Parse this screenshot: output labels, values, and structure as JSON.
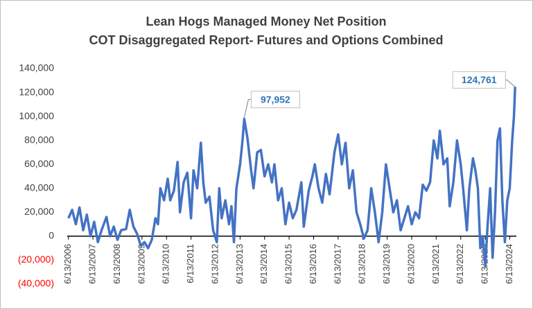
{
  "chart_data": {
    "type": "line",
    "title": "Lean Hogs Managed Money Net Position",
    "subtitle": "COT Disaggregated Report- Futures and Options Combined",
    "x": [
      2006.45,
      2006.6,
      2006.75,
      2006.9,
      2007.05,
      2007.2,
      2007.35,
      2007.5,
      2007.65,
      2007.8,
      2008.0,
      2008.15,
      2008.3,
      2008.45,
      2008.6,
      2008.8,
      2008.95,
      2009.1,
      2009.25,
      2009.4,
      2009.55,
      2009.7,
      2009.85,
      2010.0,
      2010.1,
      2010.2,
      2010.35,
      2010.5,
      2010.6,
      2010.75,
      2010.9,
      2011.0,
      2011.15,
      2011.3,
      2011.45,
      2011.55,
      2011.7,
      2011.85,
      2011.95,
      2012.05,
      2012.2,
      2012.35,
      2012.5,
      2012.6,
      2012.7,
      2012.85,
      2013.0,
      2013.1,
      2013.2,
      2013.3,
      2013.45,
      2013.55,
      2013.62,
      2013.75,
      2013.9,
      2014.0,
      2014.15,
      2014.3,
      2014.45,
      2014.6,
      2014.75,
      2014.85,
      2015.0,
      2015.15,
      2015.3,
      2015.45,
      2015.6,
      2015.75,
      2015.95,
      2016.05,
      2016.25,
      2016.4,
      2016.5,
      2016.65,
      2016.8,
      2016.95,
      2017.1,
      2017.3,
      2017.45,
      2017.6,
      2017.75,
      2017.9,
      2018.05,
      2018.2,
      2018.35,
      2018.5,
      2018.65,
      2018.8,
      2018.95,
      2019.1,
      2019.25,
      2019.4,
      2019.55,
      2019.7,
      2019.85,
      2020.0,
      2020.15,
      2020.3,
      2020.45,
      2020.6,
      2020.75,
      2020.9,
      2021.05,
      2021.2,
      2021.35,
      2021.5,
      2021.6,
      2021.75,
      2021.9,
      2022.0,
      2022.15,
      2022.3,
      2022.45,
      2022.55,
      2022.7,
      2022.8,
      2022.95,
      2023.05,
      2023.15,
      2023.25,
      2023.35,
      2023.45,
      2023.55,
      2023.65,
      2023.75,
      2023.85,
      2023.95,
      2024.05,
      2024.15,
      2024.25,
      2024.35,
      2024.45,
      2024.55,
      2024.62,
      2024.67
    ],
    "series": [
      {
        "name": "Managed Money Net Position",
        "color": "#4472c4",
        "values": [
          15000,
          22000,
          10000,
          24000,
          5000,
          18000,
          0,
          12000,
          -5000,
          5000,
          16000,
          0,
          8000,
          -3000,
          5000,
          6000,
          22000,
          8000,
          2000,
          -8000,
          -5000,
          -10000,
          -3000,
          15000,
          10000,
          40000,
          30000,
          48000,
          30000,
          38000,
          62000,
          20000,
          45000,
          53000,
          15000,
          55000,
          40000,
          78000,
          45000,
          28000,
          33000,
          5000,
          -5000,
          40000,
          15000,
          30000,
          10000,
          25000,
          -5000,
          40000,
          60000,
          80000,
          97952,
          82000,
          55000,
          40000,
          70000,
          72000,
          50000,
          60000,
          45000,
          60000,
          30000,
          40000,
          10000,
          28000,
          15000,
          22000,
          45000,
          8000,
          38000,
          50000,
          60000,
          40000,
          28000,
          52000,
          35000,
          70000,
          85000,
          60000,
          78000,
          40000,
          55000,
          20000,
          10000,
          -2000,
          5000,
          40000,
          20000,
          -5000,
          20000,
          60000,
          40000,
          20000,
          30000,
          5000,
          15000,
          25000,
          10000,
          20000,
          15000,
          43000,
          38000,
          45000,
          80000,
          65000,
          88000,
          60000,
          65000,
          25000,
          45000,
          80000,
          60000,
          40000,
          5000,
          40000,
          65000,
          55000,
          40000,
          -10000,
          0,
          -25000,
          10000,
          40000,
          -18000,
          20000,
          80000,
          90000,
          30000,
          -5000,
          30000,
          40000,
          80000,
          100000,
          124761
        ]
      }
    ],
    "annotations": [
      {
        "label": "97,952",
        "x": 2013.62,
        "value": 97952
      },
      {
        "label": "124,761",
        "x": 2024.67,
        "value": 124761
      }
    ],
    "xlim": [
      2006.4,
      2024.72
    ],
    "xticks": [
      {
        "value": 2006.45,
        "label": "6/13/2006"
      },
      {
        "value": 2007.45,
        "label": "6/13/2007"
      },
      {
        "value": 2008.45,
        "label": "6/13/2008"
      },
      {
        "value": 2009.45,
        "label": "6/13/2009"
      },
      {
        "value": 2010.45,
        "label": "6/13/2010"
      },
      {
        "value": 2011.45,
        "label": "6/13/2011"
      },
      {
        "value": 2012.45,
        "label": "6/13/2012"
      },
      {
        "value": 2013.45,
        "label": "6/13/2013"
      },
      {
        "value": 2014.45,
        "label": "6/13/2014"
      },
      {
        "value": 2015.45,
        "label": "6/13/2015"
      },
      {
        "value": 2016.45,
        "label": "6/13/2016"
      },
      {
        "value": 2017.45,
        "label": "6/13/2017"
      },
      {
        "value": 2018.45,
        "label": "6/13/2018"
      },
      {
        "value": 2019.45,
        "label": "6/13/2019"
      },
      {
        "value": 2020.45,
        "label": "6/13/2020"
      },
      {
        "value": 2021.45,
        "label": "6/13/2021"
      },
      {
        "value": 2022.45,
        "label": "6/13/2022"
      },
      {
        "value": 2023.45,
        "label": "6/13/2023"
      },
      {
        "value": 2024.45,
        "label": "6/13/2024"
      }
    ],
    "ylim": [
      -40000,
      140000
    ],
    "yticks": [
      {
        "value": -40000,
        "label": "(40,000)"
      },
      {
        "value": -20000,
        "label": "(20,000)"
      },
      0,
      {
        "value": 20000,
        "label": "20,000"
      },
      {
        "value": 40000,
        "label": "40,000"
      },
      {
        "value": 60000,
        "label": "60,000"
      },
      {
        "value": 80000,
        "label": "80,000"
      },
      {
        "value": 100000,
        "label": "100,000"
      },
      {
        "value": 120000,
        "label": "120,000"
      },
      {
        "value": 140000,
        "label": "140,000"
      }
    ],
    "negative_tick_color": "#ff0000",
    "grid": false
  }
}
